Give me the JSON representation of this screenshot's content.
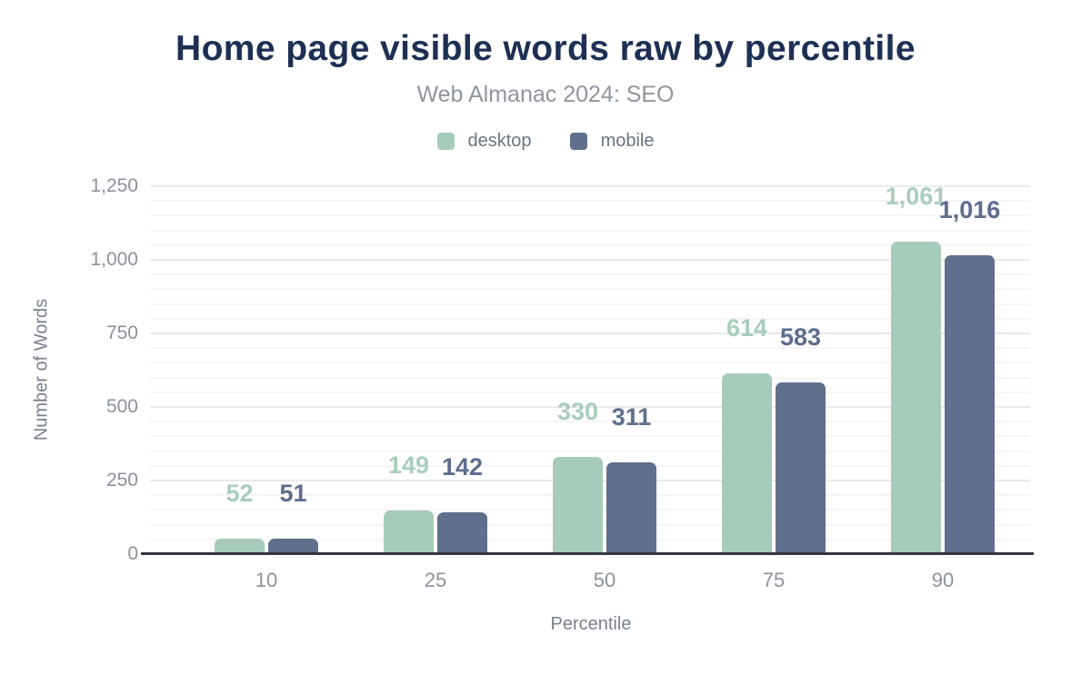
{
  "title": "Home page visible words raw by percentile",
  "subtitle": "Web Almanac 2024: SEO",
  "colors": {
    "title": "#1d3054",
    "subtitle": "#8f959d",
    "legend_text": "#6a7480",
    "tick_text": "#8c929b",
    "axis_title_text": "#79818c",
    "axis_line": "#34383f",
    "grid_major": "#e9eaec",
    "grid_minor": "#f5f5f6",
    "background": "#ffffff",
    "desktop": "#a7cbba",
    "mobile": "#5f6f8c"
  },
  "chart_data": {
    "type": "bar",
    "title": "Home page visible words raw by percentile",
    "subtitle": "Web Almanac 2024: SEO",
    "xlabel": "Percentile",
    "ylabel": "Number of Words",
    "categories": [
      "10",
      "25",
      "50",
      "75",
      "90"
    ],
    "series": [
      {
        "name": "desktop",
        "color": "#a7cbba",
        "label_color": "#a9cdbc",
        "values": [
          52,
          149,
          330,
          614,
          1061
        ]
      },
      {
        "name": "mobile",
        "color": "#5f6f8c",
        "label_color": "#5d6e8d",
        "values": [
          51,
          142,
          311,
          583,
          1016
        ]
      }
    ],
    "value_labels": [
      "52",
      "51",
      "149",
      "142",
      "330",
      "311",
      "614",
      "583",
      "1,061",
      "1,016"
    ],
    "ylim": [
      0,
      1250
    ],
    "y_major_step": 250,
    "y_minor_step": 50,
    "y_tick_labels": [
      "0",
      "250",
      "500",
      "750",
      "1,000",
      "1,250"
    ],
    "grid": true,
    "legend_position": "top"
  }
}
